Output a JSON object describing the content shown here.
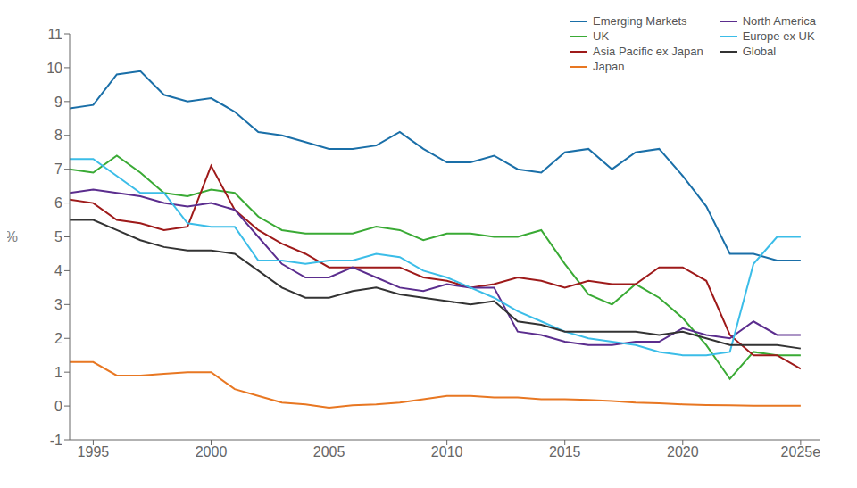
{
  "chart_data": {
    "type": "line",
    "y_label": "%",
    "x": [
      1994,
      1995,
      1996,
      1997,
      1998,
      1999,
      2000,
      2001,
      2002,
      2003,
      2004,
      2005,
      2006,
      2007,
      2008,
      2009,
      2010,
      2011,
      2012,
      2013,
      2014,
      2015,
      2016,
      2017,
      2018,
      2019,
      2020,
      2021,
      2022,
      2023,
      2024,
      2025
    ],
    "xlim": [
      1994.0,
      2025.8
    ],
    "xticks": [
      1995,
      2000,
      2005,
      2010,
      2015,
      2020,
      {
        "value": 2025,
        "label": "2025e"
      }
    ],
    "ylim": [
      -1,
      11
    ],
    "yticks": [
      -1,
      0,
      1,
      2,
      3,
      4,
      5,
      6,
      7,
      8,
      9,
      10,
      11
    ],
    "grid": false,
    "legend": "upper right",
    "series": [
      {
        "name": "Emerging Markets",
        "color": "#1a6fa8",
        "values": [
          8.8,
          8.9,
          9.8,
          9.9,
          9.2,
          9.0,
          9.1,
          8.7,
          8.1,
          8.0,
          7.8,
          7.6,
          7.6,
          7.7,
          8.1,
          7.6,
          7.2,
          7.2,
          7.4,
          7.0,
          6.9,
          7.5,
          7.6,
          7.0,
          7.5,
          7.6,
          6.8,
          5.9,
          4.5,
          4.5,
          4.3,
          4.3
        ]
      },
      {
        "name": "UK",
        "color": "#3aaa35",
        "values": [
          7.0,
          6.9,
          7.4,
          6.9,
          6.3,
          6.2,
          6.4,
          6.3,
          5.6,
          5.2,
          5.1,
          5.1,
          5.1,
          5.3,
          5.2,
          4.9,
          5.1,
          5.1,
          5.0,
          5.0,
          5.2,
          4.2,
          3.3,
          3.0,
          3.6,
          3.2,
          2.6,
          1.8,
          0.8,
          1.6,
          1.5,
          1.5
        ]
      },
      {
        "name": "Asia Pacific ex Japan",
        "color": "#9e1a1a",
        "values": [
          6.1,
          6.0,
          5.5,
          5.4,
          5.2,
          5.3,
          7.1,
          5.8,
          5.2,
          4.8,
          4.5,
          4.1,
          4.1,
          4.1,
          4.1,
          3.8,
          3.7,
          3.5,
          3.6,
          3.8,
          3.7,
          3.5,
          3.7,
          3.6,
          3.6,
          4.1,
          4.1,
          3.7,
          2.1,
          1.5,
          1.5,
          1.1
        ]
      },
      {
        "name": "Japan",
        "color": "#e87722",
        "values": [
          1.3,
          1.3,
          0.9,
          0.9,
          0.95,
          1.0,
          1.0,
          0.5,
          0.3,
          0.1,
          0.05,
          -0.05,
          0.02,
          0.05,
          0.1,
          0.2,
          0.3,
          0.3,
          0.25,
          0.25,
          0.2,
          0.2,
          0.18,
          0.15,
          0.1,
          0.08,
          0.05,
          0.03,
          0.02,
          0.01,
          0.01,
          0.01
        ]
      },
      {
        "name": "North America",
        "color": "#5b2d8e",
        "values": [
          6.3,
          6.4,
          6.3,
          6.2,
          6.0,
          5.9,
          6.0,
          5.8,
          5.0,
          4.2,
          3.8,
          3.8,
          4.1,
          3.8,
          3.5,
          3.4,
          3.6,
          3.5,
          3.5,
          2.2,
          2.1,
          1.9,
          1.8,
          1.8,
          1.9,
          1.9,
          2.3,
          2.1,
          2.0,
          2.5,
          2.1,
          2.1
        ]
      },
      {
        "name": "Europe ex UK",
        "color": "#3bbde8",
        "values": [
          7.3,
          7.3,
          6.8,
          6.3,
          6.3,
          5.4,
          5.3,
          5.3,
          4.3,
          4.3,
          4.2,
          4.3,
          4.3,
          4.5,
          4.4,
          4.0,
          3.8,
          3.5,
          3.2,
          2.8,
          2.5,
          2.2,
          2.0,
          1.9,
          1.8,
          1.6,
          1.5,
          1.5,
          1.6,
          4.2,
          5.0,
          5.0
        ]
      },
      {
        "name": "Global",
        "color": "#333333",
        "values": [
          5.5,
          5.5,
          5.2,
          4.9,
          4.7,
          4.6,
          4.6,
          4.5,
          4.0,
          3.5,
          3.2,
          3.2,
          3.4,
          3.5,
          3.3,
          3.2,
          3.1,
          3.0,
          3.1,
          2.5,
          2.4,
          2.2,
          2.2,
          2.2,
          2.2,
          2.1,
          2.2,
          2.0,
          1.8,
          1.8,
          1.8,
          1.7
        ]
      }
    ]
  }
}
